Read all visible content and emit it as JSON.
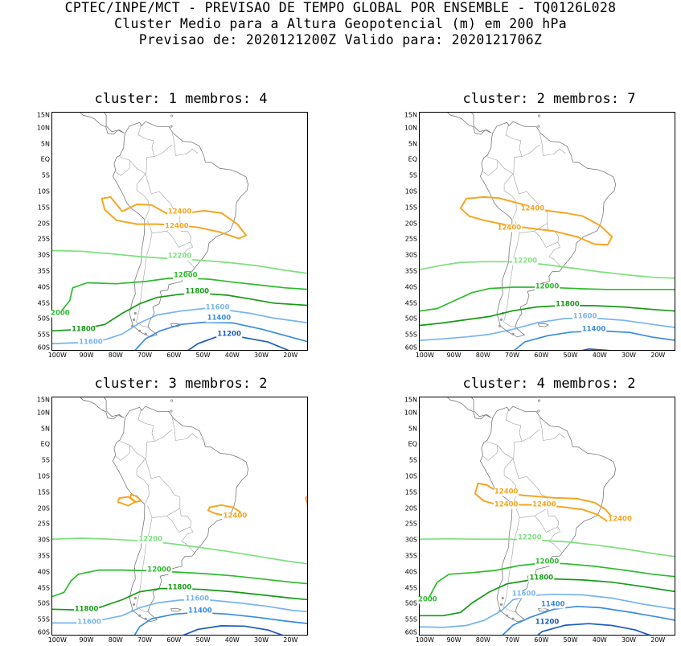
{
  "header": {
    "line1": "CPTEC/INPE/MCT - PREVISAO DE TEMPO GLOBAL POR ENSEMBLE - TQ0126L028",
    "line2": "Cluster Medio para a Altura Geopotencial (m) em 200 hPa",
    "line3": "Previsao de: 2020121200Z   Valido para: 2020121706Z"
  },
  "lat_labels": [
    "15N",
    "10N",
    "5N",
    "EQ",
    "5S",
    "10S",
    "15S",
    "20S",
    "25S",
    "30S",
    "35S",
    "40S",
    "45S",
    "50S",
    "55S",
    "60S"
  ],
  "lon_labels": [
    "100W",
    "90W",
    "80W",
    "70W",
    "60W",
    "50W",
    "40W",
    "30W",
    "20W"
  ],
  "colors": {
    "c12400": "#f5a623",
    "c12200": "#7de07d",
    "c12000": "#2cbb2c",
    "c11800": "#169a16",
    "c11600": "#78b4f0",
    "c11400": "#3a8be0",
    "c11200": "#1a5cc0",
    "coast": "#7a7a7a"
  },
  "panels": [
    {
      "title": "cluster: 1  membros: 4",
      "labels": [
        {
          "text": "12400",
          "lon": -58,
          "lat": -16.5,
          "c": "c12400"
        },
        {
          "text": "12400",
          "lon": -59,
          "lat": -21,
          "c": "c12400"
        },
        {
          "text": "12200",
          "lon": -58,
          "lat": -30.5,
          "c": "c12200"
        },
        {
          "text": "12000",
          "lon": -56,
          "lat": -36.5,
          "c": "c12000"
        },
        {
          "text": "11800",
          "lon": -52,
          "lat": -41.5,
          "c": "c11800"
        },
        {
          "text": "11600",
          "lon": -45,
          "lat": -46.5,
          "c": "c11600"
        },
        {
          "text": "11400",
          "lon": -44.5,
          "lat": -50,
          "c": "c11400"
        },
        {
          "text": "11200",
          "lon": -41,
          "lat": -55,
          "c": "c11200"
        },
        {
          "text": "11800",
          "lon": -91,
          "lat": -53.5,
          "c": "c11800"
        },
        {
          "text": "11600",
          "lon": -88.5,
          "lat": -57.5,
          "c": "c11600"
        },
        {
          "text": "2000",
          "lon": -99,
          "lat": -48.3,
          "c": "c12000"
        }
      ]
    },
    {
      "title": "cluster: 2  membros: 7",
      "labels": [
        {
          "text": "12400",
          "lon": -63,
          "lat": -15.5,
          "c": "c12400"
        },
        {
          "text": "12400",
          "lon": -71,
          "lat": -21.5,
          "c": "c12400"
        },
        {
          "text": "12200",
          "lon": -65.5,
          "lat": -32,
          "c": "c12200"
        },
        {
          "text": "12000",
          "lon": -58,
          "lat": -40,
          "c": "c12000"
        },
        {
          "text": "11800",
          "lon": -51,
          "lat": -45.5,
          "c": "c11800"
        },
        {
          "text": "11600",
          "lon": -45,
          "lat": -49.5,
          "c": "c11600"
        },
        {
          "text": "11400",
          "lon": -42,
          "lat": -53.5,
          "c": "c11400"
        }
      ]
    },
    {
      "title": "cluster: 3  membros: 2",
      "labels": [
        {
          "text": "12400",
          "lon": -39,
          "lat": -22.5,
          "c": "c12400"
        },
        {
          "text": "12200",
          "lon": -68,
          "lat": -30,
          "c": "c12200"
        },
        {
          "text": "12000",
          "lon": -65,
          "lat": -39.5,
          "c": "c12000"
        },
        {
          "text": "11800",
          "lon": -58,
          "lat": -45,
          "c": "c11800"
        },
        {
          "text": "11600",
          "lon": -52,
          "lat": -48.5,
          "c": "c11600"
        },
        {
          "text": "11400",
          "lon": -51,
          "lat": -52.5,
          "c": "c11400"
        },
        {
          "text": "11800",
          "lon": -90,
          "lat": -52,
          "c": "c11800"
        },
        {
          "text": "11600",
          "lon": -89,
          "lat": -56,
          "c": "c11600"
        }
      ]
    },
    {
      "title": "cluster: 4  membros: 2",
      "labels": [
        {
          "text": "12400",
          "lon": -72,
          "lat": -15,
          "c": "c12400"
        },
        {
          "text": "12400",
          "lon": -72,
          "lat": -19,
          "c": "c12400"
        },
        {
          "text": "12400",
          "lon": -59,
          "lat": -19,
          "c": "c12400"
        },
        {
          "text": "12400",
          "lon": -33,
          "lat": -23.5,
          "c": "c12400"
        },
        {
          "text": "12200",
          "lon": -64,
          "lat": -29.5,
          "c": "c12200"
        },
        {
          "text": "12000",
          "lon": -58,
          "lat": -37,
          "c": "c12000"
        },
        {
          "text": "11800",
          "lon": -60,
          "lat": -42,
          "c": "c11800"
        },
        {
          "text": "11600",
          "lon": -66,
          "lat": -47,
          "c": "c11600"
        },
        {
          "text": "11400",
          "lon": -56,
          "lat": -50.5,
          "c": "c11400"
        },
        {
          "text": "11200",
          "lon": -58,
          "lat": -56,
          "c": "c11200"
        },
        {
          "text": "2000",
          "lon": -99,
          "lat": -49,
          "c": "c12000"
        }
      ]
    }
  ]
}
